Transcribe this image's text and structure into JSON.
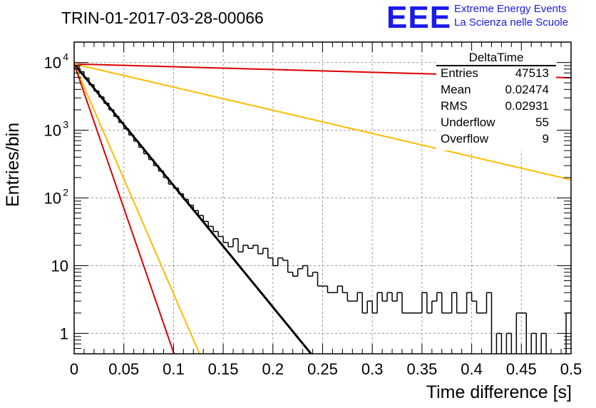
{
  "header": {
    "title": "TRIN-01-2017-03-28-00066"
  },
  "logo": {
    "mark": "EEE",
    "line1": "Extreme Energy Events",
    "line2": "La Scienza nelle Scuole",
    "color": "#1a1aee"
  },
  "stats": {
    "title": "DeltaTime",
    "rows": [
      {
        "key": "Entries",
        "value": "47513"
      },
      {
        "key": "Mean",
        "value": "0.02474"
      },
      {
        "key": "RMS",
        "value": "0.02931"
      },
      {
        "key": "Underflow",
        "value": "55"
      },
      {
        "key": "Overflow",
        "value": "9"
      }
    ]
  },
  "chart_data": {
    "type": "line",
    "xlabel": "Time difference [s]",
    "ylabel": "Entries/bin",
    "xlim": [
      0,
      0.5
    ],
    "ylim": [
      0.5,
      20000
    ],
    "yscale": "log",
    "grid": true,
    "xticks": [
      "0",
      "0.05",
      "0.1",
      "0.15",
      "0.2",
      "0.25",
      "0.3",
      "0.35",
      "0.4",
      "0.45",
      "0.5"
    ],
    "yticks": [
      {
        "value": 1,
        "label": "1"
      },
      {
        "value": 10,
        "label": "10"
      },
      {
        "value": 100,
        "label": "10",
        "exp": "2"
      },
      {
        "value": 1000,
        "label": "10",
        "exp": "3"
      },
      {
        "value": 10000,
        "label": "10",
        "exp": "4"
      }
    ],
    "histogram": {
      "color": "#000000",
      "bin_width": 0.005,
      "values": [
        9000,
        7300,
        5900,
        4700,
        3800,
        3100,
        2500,
        2000,
        1600,
        1300,
        1050,
        850,
        690,
        560,
        450,
        370,
        300,
        250,
        200,
        160,
        140,
        115,
        95,
        78,
        65,
        55,
        45,
        38,
        32,
        27,
        22,
        19,
        25,
        16,
        20,
        18,
        20,
        15,
        18,
        13,
        10,
        13,
        12,
        8,
        7,
        9,
        10,
        7,
        8,
        5,
        5,
        4,
        4,
        5,
        4,
        3,
        3,
        4,
        2,
        3,
        2,
        4,
        3,
        4,
        3,
        4,
        2,
        2,
        2,
        2,
        4,
        2,
        3,
        4,
        2,
        2,
        4,
        2,
        2,
        4,
        3,
        2,
        2,
        4,
        0,
        1,
        0,
        1,
        0,
        2,
        2,
        0,
        1,
        0,
        1,
        0,
        0,
        0,
        0,
        2
      ]
    },
    "series": [
      {
        "type": "exponential",
        "color": "#000000",
        "A": 9500,
        "tau": 0.0242,
        "xmax": 0.5
      },
      {
        "type": "exponential",
        "color": "#dd0000",
        "A": 9500,
        "tau": 1.063,
        "xmax": 0.5
      },
      {
        "type": "exponential",
        "color": "#ffbb00",
        "A": 9500,
        "tau": 0.127,
        "xmax": 0.5
      },
      {
        "type": "exponential",
        "color": "#ffbb00",
        "A": 9500,
        "tau": 0.0128,
        "xmax": 0.5
      },
      {
        "type": "exponential",
        "color": "#dd0000",
        "A": 9500,
        "tau": 0.0102,
        "xmax": 0.5
      }
    ]
  }
}
